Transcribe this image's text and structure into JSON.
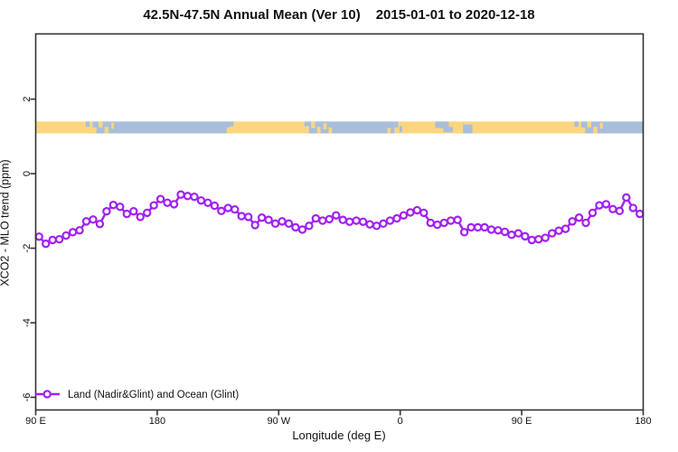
{
  "title": {
    "main": "42.5N-47.5N Annual Mean (Ver 10)",
    "dates": "2015-01-01 to 2020-12-18"
  },
  "chart_data": {
    "type": "line",
    "title": "42.5N-47.5N Annual Mean (Ver 10)   2015-01-01 to 2020-12-18",
    "xlabel": "Longitude (deg E)",
    "ylabel": "XCO2 - MLO trend (ppm)",
    "xlim": [
      90,
      540
    ],
    "ylim": [
      -6.34,
      3.75
    ],
    "grid": false,
    "legend_position": "bottom-left",
    "x_ticks": [
      {
        "value": 90,
        "label": "90 E"
      },
      {
        "value": 180,
        "label": "180"
      },
      {
        "value": 270,
        "label": "90 W"
      },
      {
        "value": 360,
        "label": "0"
      },
      {
        "value": 450,
        "label": "90 E"
      },
      {
        "value": 540,
        "label": "180"
      }
    ],
    "y_ticks": [
      {
        "value": 2,
        "label": "2"
      },
      {
        "value": 0,
        "label": "0"
      },
      {
        "value": -2,
        "label": "-2"
      },
      {
        "value": -4,
        "label": "-4"
      },
      {
        "value": -6,
        "label": "-6"
      }
    ],
    "series": [
      {
        "name": "Land (Nadir&Glint) and Ocean (Glint)",
        "color": "#A221F0",
        "marker": "open-circle",
        "x_start": 92.5,
        "x_step": 5,
        "values": [
          -1.69,
          -1.88,
          -1.78,
          -1.76,
          -1.66,
          -1.57,
          -1.52,
          -1.28,
          -1.23,
          -1.35,
          -1.01,
          -0.84,
          -0.89,
          -1.08,
          -1.01,
          -1.16,
          -1.05,
          -0.85,
          -0.68,
          -0.78,
          -0.82,
          -0.56,
          -0.6,
          -0.62,
          -0.72,
          -0.78,
          -0.86,
          -1.0,
          -0.92,
          -0.96,
          -1.14,
          -1.16,
          -1.38,
          -1.18,
          -1.24,
          -1.34,
          -1.28,
          -1.34,
          -1.44,
          -1.5,
          -1.4,
          -1.2,
          -1.26,
          -1.22,
          -1.12,
          -1.24,
          -1.29,
          -1.26,
          -1.29,
          -1.36,
          -1.4,
          -1.34,
          -1.26,
          -1.2,
          -1.12,
          -1.04,
          -0.98,
          -1.05,
          -1.32,
          -1.37,
          -1.32,
          -1.26,
          -1.24,
          -1.57,
          -1.44,
          -1.44,
          -1.44,
          -1.5,
          -1.52,
          -1.56,
          -1.64,
          -1.6,
          -1.68,
          -1.78,
          -1.76,
          -1.72,
          -1.6,
          -1.53,
          -1.48,
          -1.28,
          -1.18,
          -1.32,
          -1.05,
          -0.85,
          -0.82,
          -0.95,
          -1.0,
          -0.64,
          -0.92,
          -1.08
        ]
      }
    ],
    "land_ocean_band": {
      "description": "surface type strip: yellow = land, blue-gray = ocean",
      "top_value": 1.4,
      "bottom_value": 1.08,
      "colors": {
        "land": "#FCD67F",
        "ocean": "#A8BEDB"
      },
      "segments": [
        {
          "from": 90,
          "to": 132,
          "type": "land"
        },
        {
          "from": 132,
          "to": 234,
          "type": "ocean"
        },
        {
          "from": 234,
          "to": 289,
          "type": "land"
        },
        {
          "from": 289,
          "to": 356,
          "type": "ocean"
        },
        {
          "from": 356,
          "to": 494,
          "type": "land"
        },
        {
          "from": 494,
          "to": 540,
          "type": "ocean"
        }
      ],
      "coast_patches": [
        {
          "from": 127,
          "to": 130,
          "f0": 0.0,
          "f1": 0.45,
          "type": "ocean"
        },
        {
          "from": 132,
          "to": 135,
          "f0": 0.5,
          "f1": 1.0,
          "type": "land"
        },
        {
          "from": 136.5,
          "to": 139.5,
          "f0": 0.0,
          "f1": 0.5,
          "type": "land"
        },
        {
          "from": 141,
          "to": 144,
          "f0": 0.45,
          "f1": 1.0,
          "type": "land"
        },
        {
          "from": 146,
          "to": 148,
          "f0": 0.1,
          "f1": 0.6,
          "type": "land"
        },
        {
          "from": 231.5,
          "to": 234,
          "f0": 0.5,
          "f1": 1.0,
          "type": "land"
        },
        {
          "from": 234,
          "to": 236.5,
          "f0": 0.0,
          "f1": 0.4,
          "type": "ocean"
        },
        {
          "from": 289,
          "to": 292.5,
          "f0": 0.4,
          "f1": 1.0,
          "type": "land"
        },
        {
          "from": 294,
          "to": 297,
          "f0": 0.0,
          "f1": 0.55,
          "type": "land"
        },
        {
          "from": 298.5,
          "to": 301,
          "f0": 0.45,
          "f1": 1.0,
          "type": "land"
        },
        {
          "from": 303,
          "to": 305.5,
          "f0": 0.15,
          "f1": 0.65,
          "type": "land"
        },
        {
          "from": 307,
          "to": 309.5,
          "f0": 0.5,
          "f1": 1.0,
          "type": "land"
        },
        {
          "from": 350.5,
          "to": 353,
          "f0": 0.55,
          "f1": 1.0,
          "type": "land"
        },
        {
          "from": 356,
          "to": 358.5,
          "f0": 0.0,
          "f1": 0.5,
          "type": "ocean"
        },
        {
          "from": 359.5,
          "to": 361.5,
          "f0": 0.4,
          "f1": 0.9,
          "type": "ocean"
        },
        {
          "from": 386,
          "to": 396,
          "f0": 0.0,
          "f1": 0.55,
          "type": "ocean"
        },
        {
          "from": 392,
          "to": 399,
          "f0": 0.45,
          "f1": 0.9,
          "type": "ocean"
        },
        {
          "from": 406.5,
          "to": 413.5,
          "f0": 0.25,
          "f1": 1.0,
          "type": "ocean"
        },
        {
          "from": 489,
          "to": 492,
          "f0": 0.0,
          "f1": 0.45,
          "type": "ocean"
        },
        {
          "from": 494,
          "to": 497,
          "f0": 0.5,
          "f1": 1.0,
          "type": "land"
        },
        {
          "from": 498.5,
          "to": 501.5,
          "f0": 0.0,
          "f1": 0.5,
          "type": "land"
        },
        {
          "from": 503,
          "to": 506,
          "f0": 0.45,
          "f1": 1.0,
          "type": "land"
        },
        {
          "from": 508,
          "to": 510,
          "f0": 0.1,
          "f1": 0.6,
          "type": "land"
        }
      ]
    }
  },
  "legend": {
    "label": "Land (Nadir&Glint) and Ocean (Glint)"
  },
  "colors": {
    "series": "#A221F0",
    "land": "#FCD67F",
    "ocean": "#A8BEDB",
    "frame": "#333333",
    "text": "#111111"
  }
}
